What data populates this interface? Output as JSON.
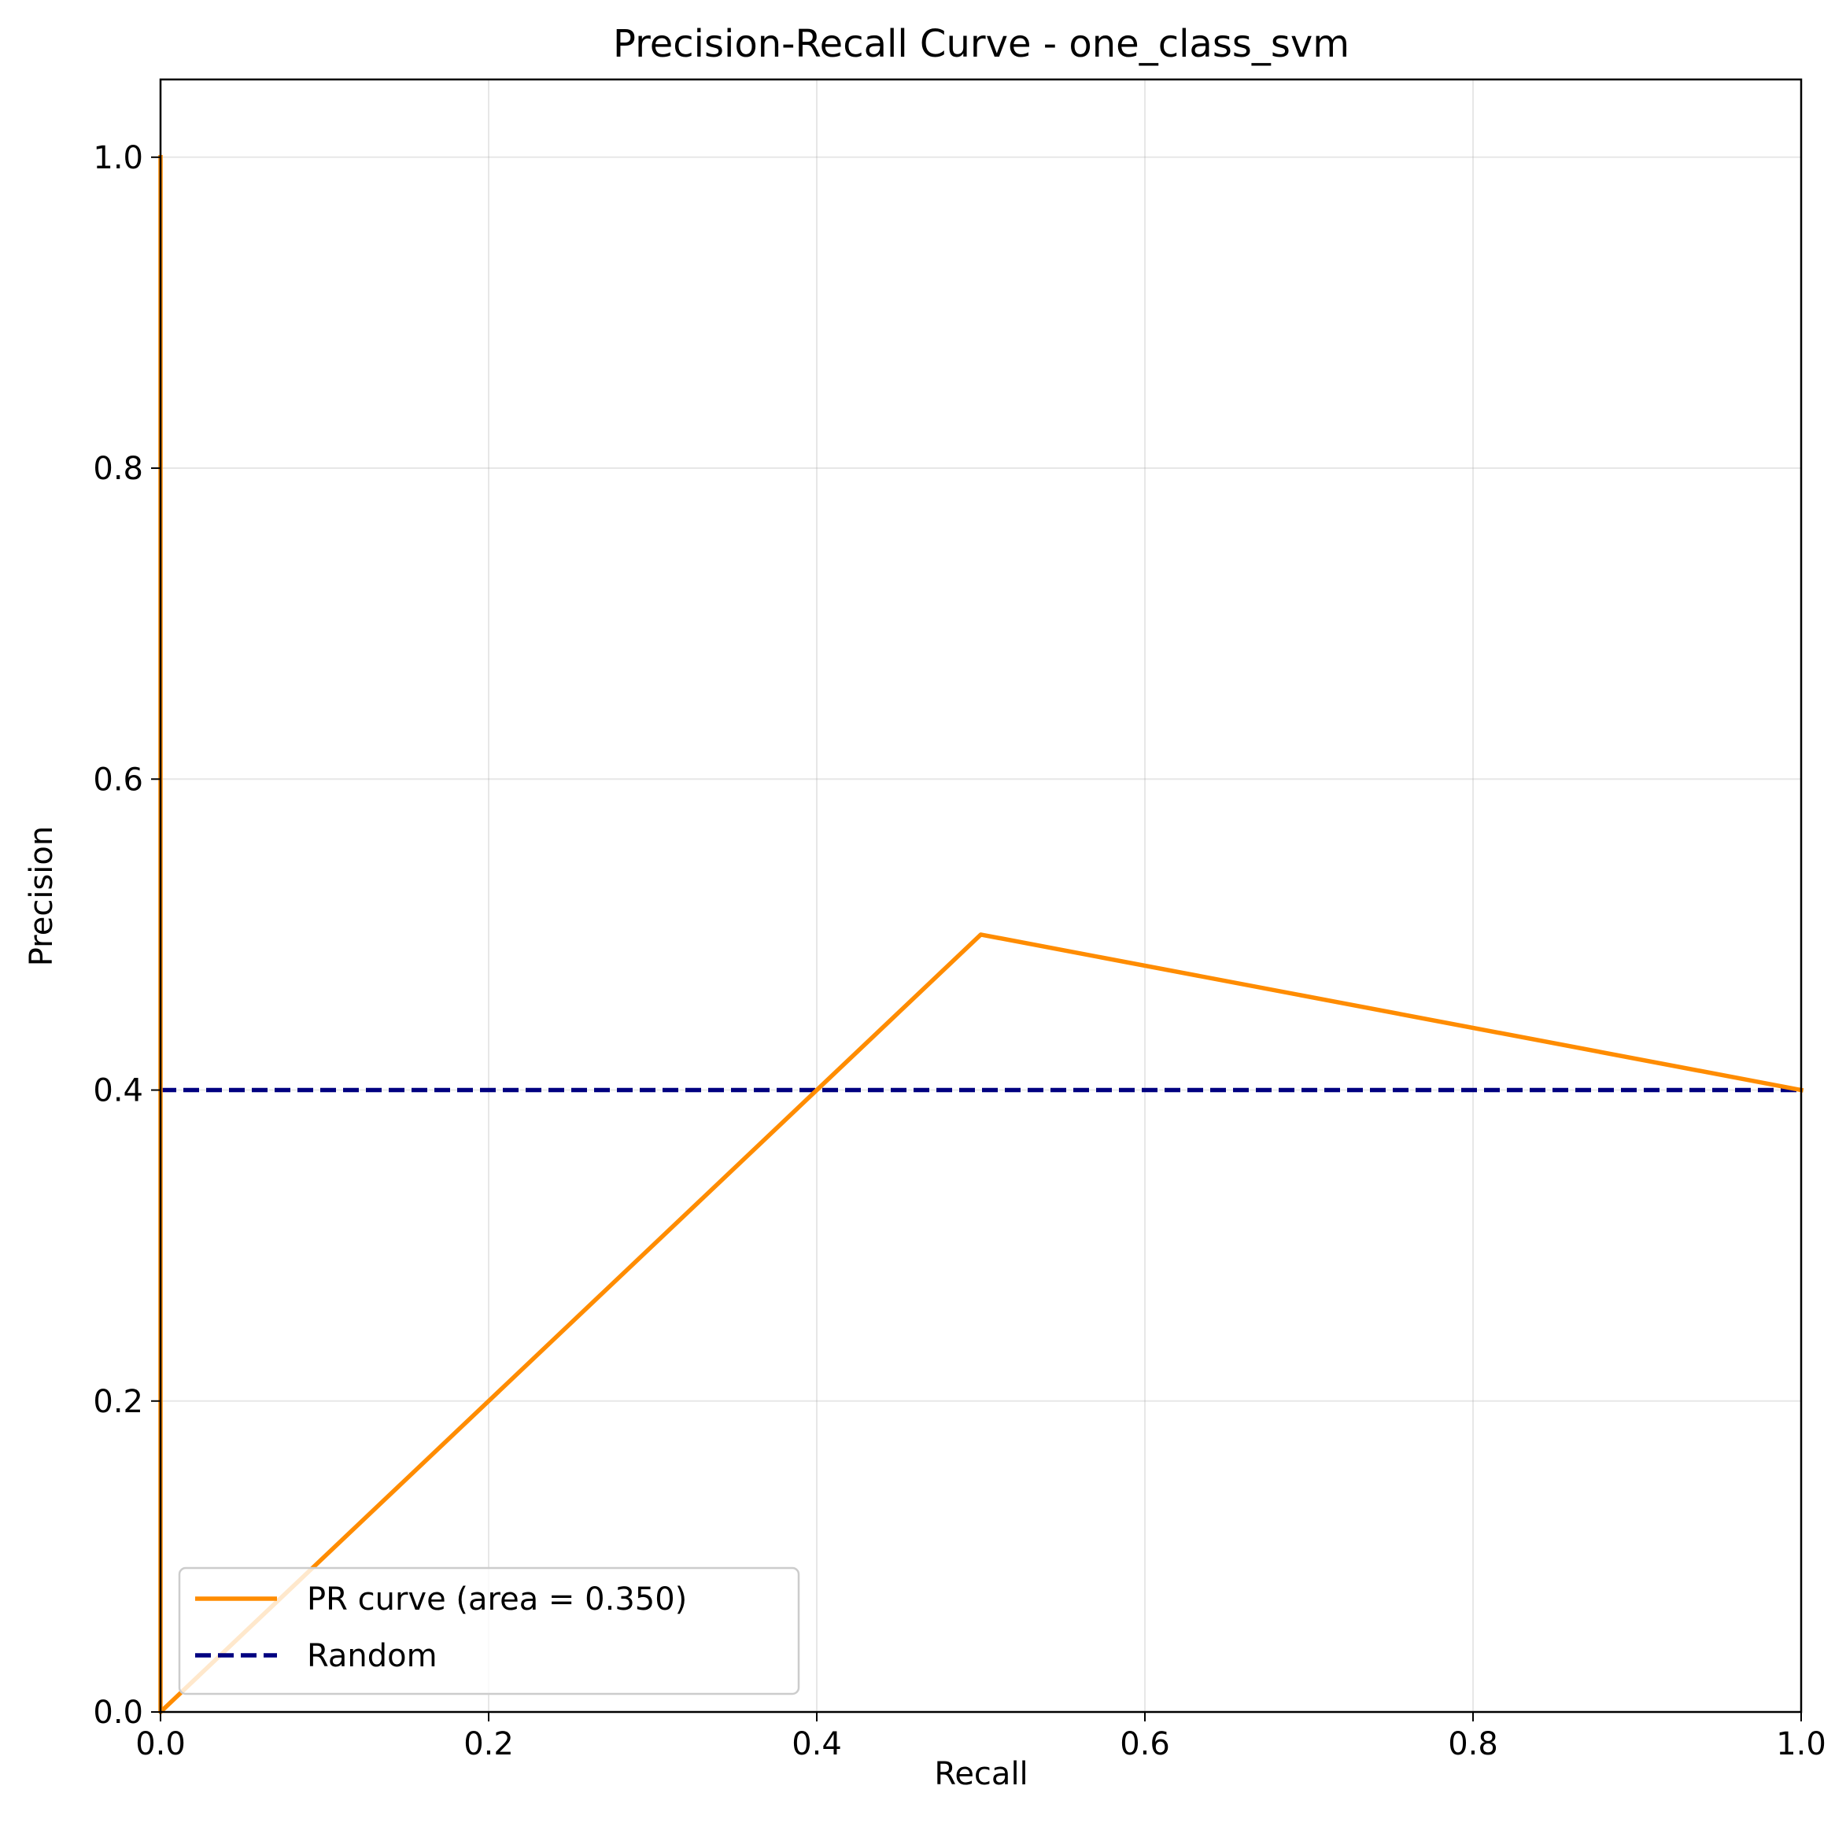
{
  "chart_data": {
    "type": "line",
    "title": "Precision-Recall Curve - one_class_svm",
    "xlabel": "Recall",
    "ylabel": "Precision",
    "xlim": [
      0.0,
      1.0
    ],
    "ylim": [
      0.0,
      1.05
    ],
    "xticks": [
      0.0,
      0.2,
      0.4,
      0.6,
      0.8,
      1.0
    ],
    "xtick_labels": [
      "0.0",
      "0.2",
      "0.4",
      "0.6",
      "0.8",
      "1.0"
    ],
    "yticks": [
      0.0,
      0.2,
      0.4,
      0.6,
      0.8,
      1.0
    ],
    "ytick_labels": [
      "0.0",
      "0.2",
      "0.4",
      "0.6",
      "0.8",
      "1.0"
    ],
    "grid": true,
    "legend_position": "lower-left",
    "series": [
      {
        "name": "PR curve (area = 0.350)",
        "color": "#ff8c00",
        "style": "solid",
        "x": [
          0.0,
          0.0,
          0.5,
          1.0
        ],
        "y": [
          1.0,
          0.0,
          0.5,
          0.4
        ]
      },
      {
        "name": "Random",
        "color": "#000080",
        "style": "dashed",
        "x": [
          0.0,
          1.0
        ],
        "y": [
          0.4,
          0.4
        ]
      }
    ]
  }
}
